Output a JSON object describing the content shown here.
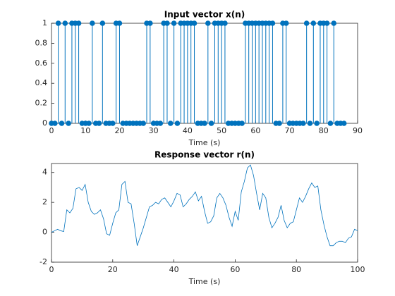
{
  "chart_data": [
    {
      "type": "stem",
      "title": "Input vector x(n)",
      "xlabel": "Time (s)",
      "color": "#0072bd",
      "x": [
        0,
        1,
        2,
        3,
        4,
        5,
        6,
        7,
        8,
        9,
        10,
        11,
        12,
        13,
        14,
        15,
        16,
        17,
        18,
        19,
        20,
        21,
        22,
        23,
        24,
        25,
        26,
        27,
        28,
        29,
        30,
        31,
        32,
        33,
        34,
        35,
        36,
        37,
        38,
        39,
        40,
        41,
        42,
        43,
        44,
        45,
        46,
        47,
        48,
        49,
        50,
        51,
        52,
        53,
        54,
        55,
        56,
        57,
        58,
        59,
        60,
        61,
        62,
        63,
        64,
        65,
        66,
        67,
        68,
        69,
        70,
        71,
        72,
        73,
        74,
        75,
        76,
        77,
        78,
        79,
        80,
        81,
        82,
        83,
        84,
        85,
        86
      ],
      "values": [
        0,
        0,
        1,
        0,
        1,
        0,
        1,
        1,
        1,
        0,
        0,
        0,
        1,
        0,
        0,
        1,
        0,
        0,
        0,
        1,
        1,
        0,
        0,
        0,
        0,
        0,
        0,
        0,
        1,
        1,
        0,
        0,
        0,
        1,
        1,
        0,
        1,
        0,
        1,
        1,
        1,
        1,
        1,
        0,
        0,
        0,
        1,
        0,
        1,
        1,
        1,
        1,
        0,
        0,
        0,
        0,
        0,
        1,
        1,
        1,
        1,
        1,
        1,
        1,
        1,
        1,
        0,
        0,
        1,
        1,
        0,
        0,
        0,
        0,
        0,
        1,
        0,
        1,
        0,
        1,
        1,
        1,
        0,
        1,
        0,
        0,
        0
      ],
      "xlim": [
        0,
        90
      ],
      "xticks": [
        0,
        10,
        20,
        30,
        40,
        50,
        60,
        70,
        80,
        90
      ],
      "ylim": [
        0,
        1
      ],
      "yticks": [
        0,
        0.2,
        0.4,
        0.6,
        0.8,
        1
      ]
    },
    {
      "type": "line",
      "title": "Response vector r(n)",
      "xlabel": "Time (s)",
      "color": "#0072bd",
      "x": [
        0,
        1,
        2,
        3,
        4,
        5,
        6,
        7,
        8,
        9,
        10,
        11,
        12,
        13,
        14,
        15,
        16,
        17,
        18,
        19,
        20,
        21,
        22,
        23,
        24,
        25,
        26,
        27,
        28,
        29,
        30,
        31,
        32,
        33,
        34,
        35,
        36,
        37,
        38,
        39,
        40,
        41,
        42,
        43,
        44,
        45,
        46,
        47,
        48,
        49,
        50,
        51,
        52,
        53,
        54,
        55,
        56,
        57,
        58,
        59,
        60,
        61,
        62,
        63,
        64,
        65,
        66,
        67,
        68,
        69,
        70,
        71,
        72,
        73,
        74,
        75,
        76,
        77,
        78,
        79,
        80,
        81,
        82,
        83,
        84,
        85,
        86,
        87,
        88,
        89,
        90,
        91,
        92,
        93,
        94,
        95,
        96,
        97,
        98,
        99,
        100
      ],
      "values": [
        0,
        0.1,
        0.2,
        0.1,
        0.05,
        1.5,
        1.3,
        1.6,
        2.9,
        3.0,
        2.8,
        3.2,
        2.0,
        1.4,
        1.2,
        1.3,
        1.5,
        0.9,
        -0.1,
        -0.2,
        0.6,
        1.3,
        1.5,
        3.2,
        3.4,
        2.0,
        1.9,
        0.6,
        -0.9,
        -0.3,
        0.3,
        1.0,
        1.7,
        1.8,
        2.0,
        1.9,
        2.2,
        2.3,
        2.0,
        1.7,
        2.1,
        2.6,
        2.5,
        1.7,
        1.9,
        2.2,
        2.4,
        2.7,
        2.1,
        2.4,
        1.4,
        0.6,
        0.7,
        1.1,
        2.3,
        2.6,
        2.3,
        1.8,
        1.0,
        0.4,
        1.4,
        0.8,
        2.7,
        3.4,
        4.3,
        4.5,
        3.8,
        2.6,
        1.5,
        2.6,
        2.3,
        1.0,
        0.3,
        0.6,
        1.0,
        1.8,
        0.8,
        0.3,
        0.6,
        0.7,
        1.5,
        2.3,
        2.0,
        2.4,
        2.9,
        3.3,
        3.0,
        3.1,
        1.5,
        0.5,
        -0.3,
        -0.9,
        -0.9,
        -0.7,
        -0.6,
        -0.6,
        -0.7,
        -0.4,
        -0.3,
        0.2,
        0.1
      ],
      "xlim": [
        0,
        100
      ],
      "xticks": [
        0,
        20,
        40,
        60,
        80,
        100
      ],
      "ylim": [
        -2,
        4.6
      ],
      "yticks": [
        -2,
        0,
        2,
        4
      ]
    }
  ]
}
